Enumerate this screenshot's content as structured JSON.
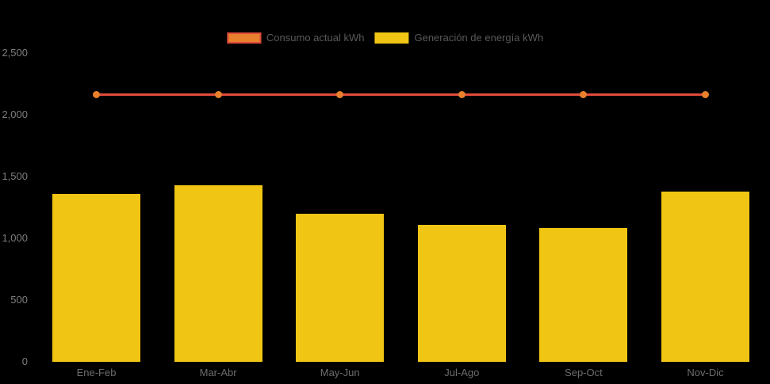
{
  "legend": {
    "items": [
      {
        "label": "Consumo actual kWh",
        "swatch_fill": "#e8802d",
        "swatch_border": "#e24b3b"
      },
      {
        "label": "Generación de energía kWh",
        "swatch_fill": "#f0c514",
        "swatch_border": "#f0c514"
      }
    ]
  },
  "colors": {
    "background": "#000000",
    "consumo_line": "#e24b3b",
    "consumo_marker": "#e8802d",
    "generacion_bar": "#f0c514",
    "y_axis_text": "#7d7d7d",
    "x_axis_text": "#6d6d6d",
    "legend_text": "#58595b"
  },
  "chart_data": {
    "type": "bar",
    "categories": [
      "Ene-Feb",
      "Mar-Abr",
      "May-Jun",
      "Jul-Ago",
      "Sep-Oct",
      "Nov-Dic"
    ],
    "series": [
      {
        "name": "Consumo actual kWh",
        "type": "line",
        "color": "#e24b3b",
        "marker_color": "#e8802d",
        "values": [
          2160,
          2160,
          2160,
          2160,
          2160,
          2160
        ]
      },
      {
        "name": "Generación de energía kWh",
        "type": "bar",
        "color": "#f0c514",
        "values": [
          1350,
          1425,
          1190,
          1100,
          1080,
          1370
        ]
      }
    ],
    "title": "",
    "xlabel": "",
    "ylabel": "",
    "ylim": [
      0,
      2500
    ],
    "yticks": [
      0,
      500,
      1000,
      1500,
      2000,
      2500
    ],
    "ytick_labels": [
      "0",
      "500",
      "1,000",
      "1,500",
      "2,000",
      "2,500"
    ],
    "grid": false,
    "legend_position": "top"
  }
}
